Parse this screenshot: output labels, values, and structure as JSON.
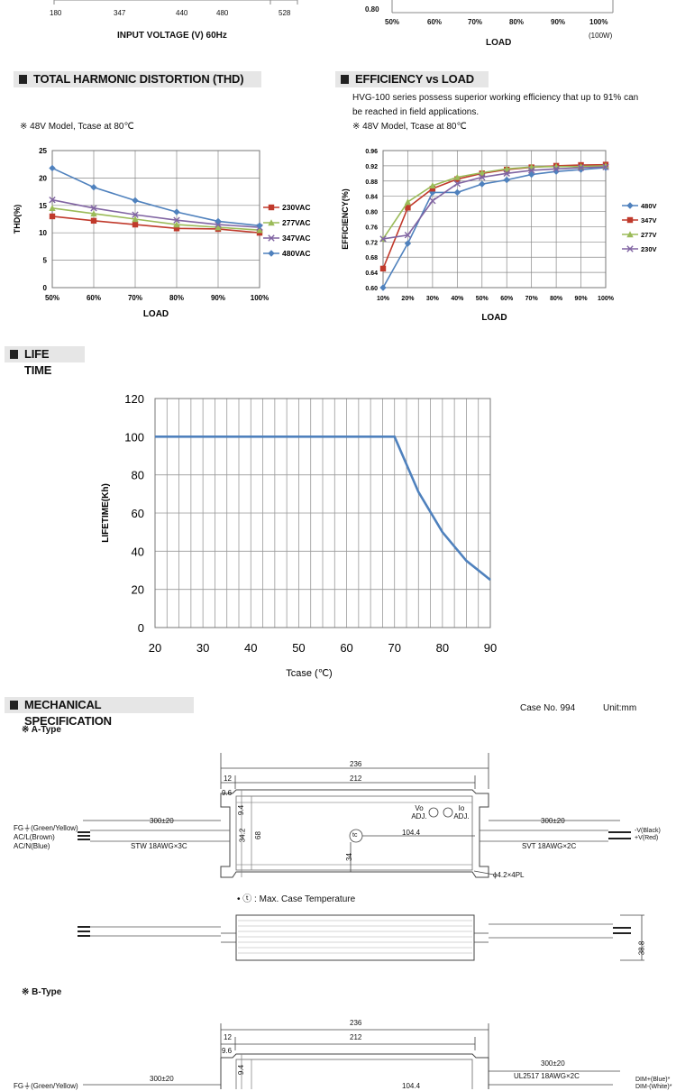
{
  "top": {
    "input_axis": {
      "ticks": [
        "180",
        "347",
        "440",
        "480",
        "528"
      ],
      "label": "INPUT VOLTAGE (V) 60Hz"
    },
    "load_axis": {
      "y_tick": "0.80",
      "ticks": [
        "50%",
        "60%",
        "70%",
        "80%",
        "90%",
        "100%"
      ],
      "note": "(100W)",
      "label": "LOAD"
    }
  },
  "sections": {
    "thd": "TOTAL HARMONIC DISTORTION (THD)",
    "eff": "EFFICIENCY vs LOAD",
    "life": "LIFE TIME",
    "mech": "MECHANICAL SPECIFICATION"
  },
  "thd_note": "※ 48V Model, Tcase at 80℃",
  "eff_desc1": "HVG-100 series possess superior working efficiency that up to 91% can",
  "eff_desc2": "be reached in field applications.",
  "eff_note": "※ 48V Model, Tcase at 80℃",
  "chart_data": [
    {
      "type": "line",
      "title": "TOTAL HARMONIC DISTORTION (THD)",
      "xlabel": "LOAD",
      "ylabel": "THD(%)",
      "categories": [
        "50%",
        "60%",
        "70%",
        "80%",
        "90%",
        "100%"
      ],
      "ylim": [
        0,
        25
      ],
      "yticks": [
        "0",
        "5",
        "10",
        "15",
        "20",
        "25"
      ],
      "series": [
        {
          "name": "230VAC",
          "color": "#c0392b",
          "marker": "square",
          "values": [
            13,
            12.2,
            11.5,
            10.8,
            10.7,
            10
          ]
        },
        {
          "name": "277VAC",
          "color": "#9bbb59",
          "marker": "triangle",
          "values": [
            14.5,
            13.5,
            12.5,
            11.5,
            11,
            10.5
          ]
        },
        {
          "name": "347VAC",
          "color": "#8064a2",
          "marker": "x",
          "values": [
            16,
            14.5,
            13.3,
            12.3,
            11.5,
            11
          ]
        },
        {
          "name": "480VAC",
          "color": "#4f81bd",
          "marker": "diamond",
          "values": [
            21.8,
            18.3,
            15.9,
            13.8,
            12.1,
            11.3
          ]
        }
      ]
    },
    {
      "type": "line",
      "title": "EFFICIENCY vs LOAD",
      "xlabel": "LOAD",
      "ylabel": "EFFICIENCY(%)",
      "categories": [
        "10%",
        "20%",
        "30%",
        "40%",
        "50%",
        "60%",
        "70%",
        "80%",
        "90%",
        "100%"
      ],
      "ylim": [
        0.6,
        0.96
      ],
      "yticks": [
        "0.60",
        "0.64",
        "0.68",
        "0.72",
        "0.76",
        "0.80",
        "0.84",
        "0.88",
        "0.92",
        "0.96"
      ],
      "series": [
        {
          "name": "480V",
          "color": "#4f81bd",
          "marker": "diamond",
          "values": [
            0.6,
            0.716,
            0.85,
            0.85,
            0.872,
            0.883,
            0.897,
            0.905,
            0.91,
            0.915
          ]
        },
        {
          "name": "347V",
          "color": "#c0392b",
          "marker": "square",
          "values": [
            0.65,
            0.81,
            0.86,
            0.885,
            0.9,
            0.91,
            0.916,
            0.92,
            0.922,
            0.923
          ]
        },
        {
          "name": "277V",
          "color": "#9bbb59",
          "marker": "triangle",
          "values": [
            0.728,
            0.825,
            0.868,
            0.89,
            0.902,
            0.912,
            0.917,
            0.918,
            0.918,
            0.92
          ]
        },
        {
          "name": "230V",
          "color": "#8064a2",
          "marker": "x",
          "values": [
            0.728,
            0.738,
            0.828,
            0.873,
            0.89,
            0.9,
            0.908,
            0.912,
            0.915,
            0.917
          ]
        }
      ]
    },
    {
      "type": "line",
      "title": "LIFE TIME",
      "xlabel": "Tcase (℃)",
      "ylabel": "LIFETIME(Kh)",
      "x": [
        20,
        70,
        75,
        80,
        85,
        90
      ],
      "values": [
        100,
        100,
        71,
        50,
        35,
        25
      ],
      "xlim": [
        20,
        90
      ],
      "ylim": [
        0,
        120
      ],
      "xticks": [
        "20",
        "30",
        "40",
        "50",
        "60",
        "70",
        "80",
        "90"
      ],
      "yticks": [
        "0",
        "20",
        "40",
        "60",
        "80",
        "100",
        "120"
      ],
      "color": "#4f81bd"
    }
  ],
  "mech": {
    "case_no": "Case No. 994",
    "unit": "Unit:mm",
    "a_type": "※ A-Type",
    "b_type": "※ B-Type",
    "dims": {
      "d236": "236",
      "d212": "212",
      "d12": "12",
      "d96": "9.6",
      "d94": "9.4",
      "d342": "34.2",
      "d68": "68",
      "d34": "34",
      "d1044": "104.4",
      "d300": "300±20",
      "d388": "38.8",
      "hole": "ϕ4.2×4PL"
    },
    "tc_note": "• ⓣ : Max. Case Temperature",
    "vo_adj": "Vo ADJ.",
    "io_adj": "Io ADJ.",
    "tc": "tc",
    "left_wires": [
      "FG⏚(Green/Yellow)",
      "AC/L(Brown)",
      "AC/N(Blue)"
    ],
    "left_cable": "STW 18AWG×3C",
    "right_wires": [
      "-V(Black)",
      "+V(Red)"
    ],
    "right_cable": "SVT 18AWG×2C",
    "b_right_cable": "UL2517 18AWG×2C",
    "b_right_wires": [
      "DIM+(Blue)*",
      "DIM-(White)*"
    ],
    "b_left_wire": "FG⏚(Green/Yellow)",
    "b_mid": "104.4"
  }
}
